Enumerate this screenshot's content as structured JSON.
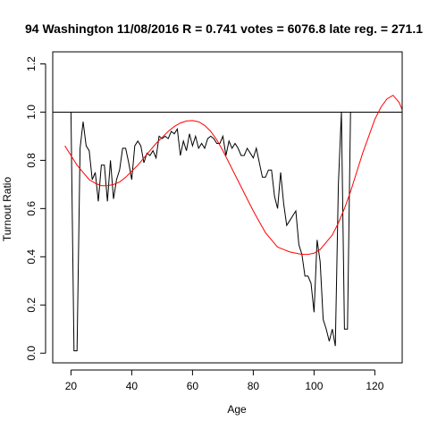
{
  "chart_data": {
    "type": "line",
    "title": "94 Washington 11/08/2016 R = 0.741 votes = 6076.8 late reg. = 271.1",
    "xlabel": "Age",
    "ylabel": "Turnout Ratio",
    "xlim": [
      14,
      129
    ],
    "ylim": [
      -0.04,
      1.25
    ],
    "x_ticks": [
      20,
      40,
      60,
      80,
      100,
      120
    ],
    "y_ticks": [
      0.0,
      0.2,
      0.4,
      0.6,
      0.8,
      1.0,
      1.2
    ],
    "x_tick_labels": [
      "20",
      "40",
      "60",
      "80",
      "100",
      "120"
    ],
    "y_tick_labels": [
      "0.0",
      "0.2",
      "0.4",
      "0.6",
      "0.8",
      "1.0",
      "1.2"
    ],
    "reference_line": {
      "y": 1.0,
      "color": "#000000"
    },
    "series": [
      {
        "color": "#000000",
        "x": [
          20,
          21,
          22,
          23,
          24,
          25,
          26,
          27,
          28,
          29,
          30,
          31,
          32,
          33,
          34,
          35,
          36,
          37,
          38,
          39,
          40,
          41,
          42,
          43,
          44,
          45,
          46,
          47,
          48,
          49,
          50,
          51,
          52,
          53,
          54,
          55,
          56,
          57,
          58,
          59,
          60,
          61,
          62,
          63,
          64,
          65,
          66,
          67,
          68,
          69,
          70,
          71,
          72,
          73,
          74,
          75,
          76,
          77,
          78,
          79,
          80,
          81,
          82,
          83,
          84,
          85,
          86,
          87,
          88,
          89,
          90,
          91,
          92,
          93,
          94,
          95,
          96,
          97,
          98,
          99,
          100,
          101,
          102,
          103,
          104,
          105,
          106,
          107,
          108,
          109,
          110,
          111,
          112
        ],
        "y": [
          1.0,
          0.01,
          0.01,
          0.85,
          0.96,
          0.86,
          0.84,
          0.72,
          0.75,
          0.63,
          0.78,
          0.78,
          0.63,
          0.8,
          0.64,
          0.72,
          0.76,
          0.85,
          0.85,
          0.79,
          0.72,
          0.86,
          0.88,
          0.86,
          0.79,
          0.83,
          0.82,
          0.84,
          0.81,
          0.9,
          0.89,
          0.9,
          0.89,
          0.92,
          0.91,
          0.93,
          0.82,
          0.88,
          0.84,
          0.91,
          0.86,
          0.9,
          0.85,
          0.87,
          0.85,
          0.89,
          0.9,
          0.89,
          0.87,
          0.87,
          0.9,
          0.82,
          0.88,
          0.85,
          0.87,
          0.85,
          0.82,
          0.82,
          0.85,
          0.83,
          0.81,
          0.85,
          0.79,
          0.73,
          0.73,
          0.76,
          0.76,
          0.65,
          0.6,
          0.75,
          0.62,
          0.53,
          0.55,
          0.57,
          0.59,
          0.45,
          0.41,
          0.32,
          0.32,
          0.29,
          0.17,
          0.47,
          0.38,
          0.14,
          0.1,
          0.05,
          0.1,
          0.03,
          0.7,
          1.0,
          0.1,
          0.1,
          1.0
        ]
      },
      {
        "color": "#ff0000",
        "x": [
          18,
          20,
          22,
          24,
          26,
          28,
          30,
          32,
          34,
          36,
          38,
          40,
          42,
          44,
          46,
          48,
          50,
          52,
          54,
          56,
          58,
          60,
          62,
          64,
          66,
          68,
          70,
          72,
          74,
          76,
          78,
          80,
          82,
          84,
          86,
          88,
          90,
          92,
          94,
          96,
          98,
          100,
          102,
          104,
          106,
          108,
          110,
          112,
          114,
          116,
          118,
          120,
          122,
          124,
          126,
          128,
          129
        ],
        "y": [
          0.86,
          0.82,
          0.78,
          0.75,
          0.72,
          0.705,
          0.695,
          0.695,
          0.7,
          0.71,
          0.73,
          0.755,
          0.78,
          0.81,
          0.84,
          0.87,
          0.895,
          0.92,
          0.94,
          0.955,
          0.963,
          0.965,
          0.96,
          0.945,
          0.92,
          0.885,
          0.84,
          0.79,
          0.74,
          0.69,
          0.64,
          0.59,
          0.545,
          0.5,
          0.47,
          0.44,
          0.43,
          0.42,
          0.415,
          0.41,
          0.41,
          0.415,
          0.43,
          0.46,
          0.49,
          0.54,
          0.6,
          0.67,
          0.75,
          0.83,
          0.9,
          0.97,
          1.02,
          1.055,
          1.07,
          1.04,
          1.01
        ]
      }
    ]
  }
}
